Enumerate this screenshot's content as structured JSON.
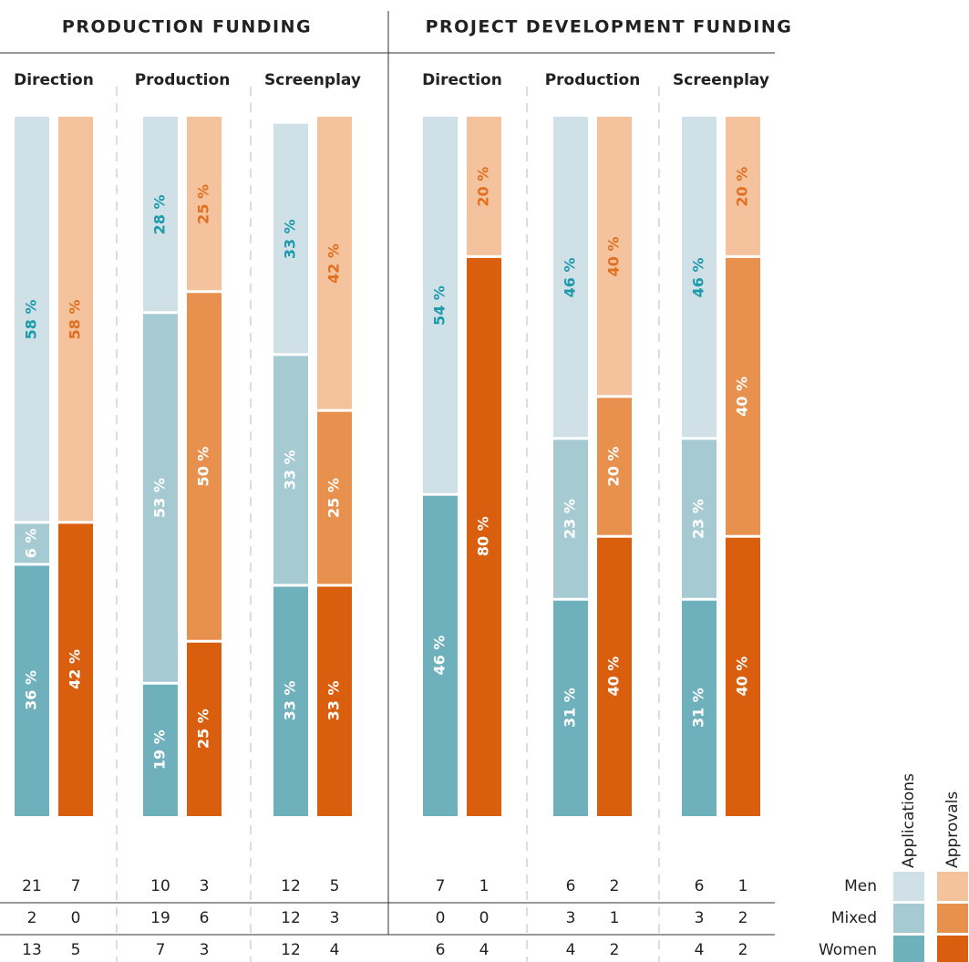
{
  "chart_data": {
    "type": "stacked-bar",
    "ylim": [
      0,
      100
    ],
    "legend": {
      "series": [
        "Men",
        "Mixed",
        "Women"
      ],
      "bars": [
        "Applications",
        "Approvals"
      ]
    },
    "colors": {
      "Applications": [
        "#cfe1e6",
        "#a6cad2",
        "#6fb0bd"
      ],
      "Approvals": [
        "#f4c29d",
        "#e8914f",
        "#d95f0e"
      ]
    },
    "top_label_colors": {
      "Applications": "#1c9aab",
      "Approvals": "#e07020"
    },
    "panels": [
      {
        "title": "PRODUCTION FUNDING",
        "groups": [
          {
            "name": "Direction",
            "bars": [
              {
                "values": [
                  58,
                  6,
                  36
                ],
                "value_labels": [
                  "58 %",
                  "6 %",
                  "36 %"
                ],
                "counts": [
                  21,
                  2,
                  13
                ]
              },
              {
                "values": [
                  58,
                  0,
                  42
                ],
                "value_labels": [
                  "58 %",
                  null,
                  "42 %"
                ],
                "counts": [
                  7,
                  0,
                  5
                ]
              }
            ]
          },
          {
            "name": "Production",
            "bars": [
              {
                "values": [
                  28,
                  53,
                  19
                ],
                "value_labels": [
                  "28 %",
                  "53 %",
                  "19 %"
                ],
                "counts": [
                  10,
                  19,
                  7
                ]
              },
              {
                "values": [
                  25,
                  50,
                  25
                ],
                "value_labels": [
                  "25 %",
                  "50 %",
                  "25 %"
                ],
                "counts": [
                  3,
                  6,
                  3
                ]
              }
            ]
          },
          {
            "name": "Screenplay",
            "bars": [
              {
                "values": [
                  33,
                  33,
                  33
                ],
                "value_labels": [
                  "33 %",
                  "33 %",
                  "33 %"
                ],
                "counts": [
                  12,
                  12,
                  12
                ]
              },
              {
                "values": [
                  42,
                  25,
                  33
                ],
                "value_labels": [
                  "42 %",
                  "25 %",
                  "33 %"
                ],
                "counts": [
                  5,
                  3,
                  4
                ]
              }
            ]
          }
        ]
      },
      {
        "title": "PROJECT DEVELOPMENT FUNDING",
        "groups": [
          {
            "name": "Direction",
            "bars": [
              {
                "values": [
                  54,
                  0,
                  46
                ],
                "value_labels": [
                  "54 %",
                  null,
                  "46 %"
                ],
                "counts": [
                  7,
                  0,
                  6
                ]
              },
              {
                "values": [
                  20,
                  0,
                  80
                ],
                "value_labels": [
                  "20 %",
                  null,
                  "80 %"
                ],
                "counts": [
                  1,
                  0,
                  4
                ]
              }
            ]
          },
          {
            "name": "Production",
            "bars": [
              {
                "values": [
                  46,
                  23,
                  31
                ],
                "value_labels": [
                  "46 %",
                  "23 %",
                  "31 %"
                ],
                "counts": [
                  6,
                  3,
                  4
                ]
              },
              {
                "values": [
                  40,
                  20,
                  40
                ],
                "value_labels": [
                  "40 %",
                  "20 %",
                  "40 %"
                ],
                "counts": [
                  2,
                  1,
                  2
                ]
              }
            ]
          },
          {
            "name": "Screenplay",
            "bars": [
              {
                "values": [
                  46,
                  23,
                  31
                ],
                "value_labels": [
                  "46 %",
                  "23 %",
                  "31 %"
                ],
                "counts": [
                  6,
                  3,
                  4
                ]
              },
              {
                "values": [
                  20,
                  40,
                  40
                ],
                "value_labels": [
                  "20 %",
                  "40 %",
                  "40 %"
                ],
                "counts": [
                  1,
                  2,
                  2
                ]
              }
            ]
          }
        ]
      }
    ]
  }
}
